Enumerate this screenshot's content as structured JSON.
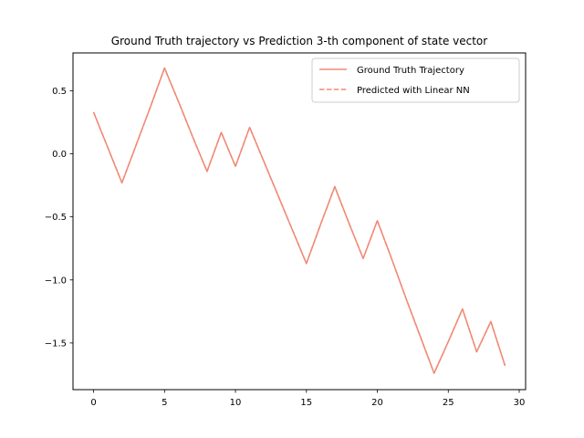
{
  "chart_data": {
    "type": "line",
    "title": "Ground Truth trajectory vs Prediction 3-th component of state vector",
    "xlabel": "",
    "ylabel": "",
    "xlim": [
      -1.45,
      30.45
    ],
    "ylim": [
      -1.87,
      0.8
    ],
    "xticks": [
      0,
      5,
      10,
      15,
      20,
      25,
      30
    ],
    "yticks": [
      -1.5,
      -1.0,
      -0.5,
      0.0,
      0.5
    ],
    "xtick_labels": [
      "0",
      "5",
      "10",
      "15",
      "20",
      "25",
      "30"
    ],
    "ytick_labels": [
      "−1.5",
      "−1.0",
      "−0.5",
      "0.0",
      "0.5"
    ],
    "grid": false,
    "legend_position": "top-right",
    "x": [
      0,
      1,
      2,
      3,
      4,
      5,
      6,
      7,
      8,
      9,
      10,
      11,
      12,
      13,
      14,
      15,
      16,
      17,
      18,
      19,
      20,
      21,
      22,
      23,
      24,
      25,
      26,
      27,
      28,
      29
    ],
    "series": [
      {
        "name": "Ground Truth Trajectory",
        "style": "solid",
        "color": "#f08a75",
        "values": [
          0.33,
          0.05,
          -0.23,
          0.07,
          0.37,
          0.68,
          0.41,
          0.13,
          -0.14,
          0.17,
          -0.1,
          0.21,
          -0.06,
          -0.33,
          -0.6,
          -0.87,
          -0.56,
          -0.26,
          -0.55,
          -0.83,
          -0.53,
          -0.83,
          -1.14,
          -1.44,
          -1.74,
          -1.49,
          -1.23,
          -1.57,
          -1.33,
          -1.68
        ]
      },
      {
        "name": "Predicted with Linear NN",
        "style": "dashed",
        "color": "#f08a75",
        "values": [
          0.33,
          0.05,
          -0.23,
          0.07,
          0.37,
          0.68,
          0.41,
          0.13,
          -0.14,
          0.17,
          -0.1,
          0.21,
          -0.06,
          -0.33,
          -0.6,
          -0.87,
          -0.56,
          -0.26,
          -0.55,
          -0.83,
          -0.53,
          -0.83,
          -1.14,
          -1.44,
          -1.74,
          -1.49,
          -1.23,
          -1.57,
          -1.33,
          -1.68
        ]
      }
    ]
  }
}
